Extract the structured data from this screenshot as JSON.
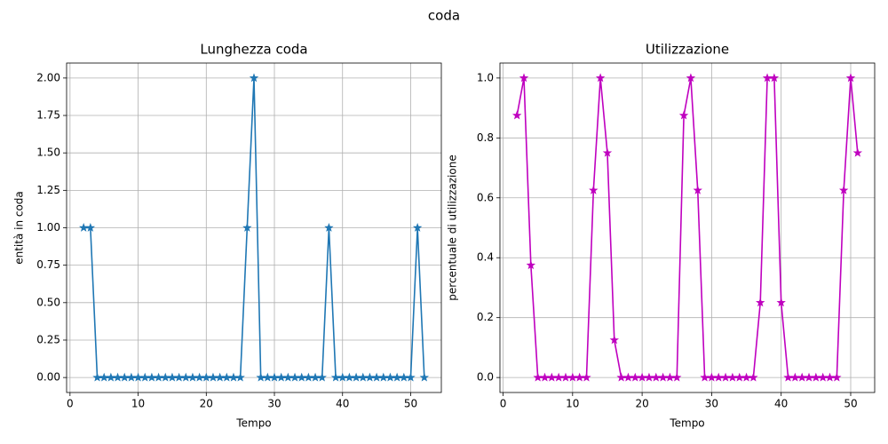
{
  "title": "coda",
  "chart_data": [
    {
      "type": "line",
      "title": "Lunghezza coda",
      "xlabel": "Tempo",
      "ylabel": "entità in coda",
      "color": "#1f77b4",
      "marker": "star",
      "grid": true,
      "x": [
        2,
        3,
        4,
        5,
        6,
        7,
        8,
        9,
        10,
        11,
        12,
        13,
        14,
        15,
        16,
        17,
        18,
        19,
        20,
        21,
        22,
        23,
        24,
        25,
        26,
        27,
        28,
        29,
        30,
        31,
        32,
        33,
        34,
        35,
        36,
        37,
        38,
        39,
        40,
        41,
        42,
        43,
        44,
        45,
        46,
        47,
        48,
        49,
        50,
        51,
        52
      ],
      "values": [
        1,
        1,
        0,
        0,
        0,
        0,
        0,
        0,
        0,
        0,
        0,
        0,
        0,
        0,
        0,
        0,
        0,
        0,
        0,
        0,
        0,
        0,
        0,
        0,
        1,
        2,
        0,
        0,
        0,
        0,
        0,
        0,
        0,
        0,
        0,
        0,
        1,
        0,
        0,
        0,
        0,
        0,
        0,
        0,
        0,
        0,
        0,
        0,
        0,
        1,
        0
      ],
      "xlim": [
        -0.5,
        54.5
      ],
      "ylim": [
        -0.1,
        2.1
      ],
      "xticks": [
        0,
        10,
        20,
        30,
        40,
        50
      ],
      "yticks": [
        {
          "value": 0,
          "label": "0.00"
        },
        {
          "value": 0.25,
          "label": "0.25"
        },
        {
          "value": 0.5,
          "label": "0.50"
        },
        {
          "value": 0.75,
          "label": "0.75"
        },
        {
          "value": 1,
          "label": "1.00"
        },
        {
          "value": 1.25,
          "label": "1.25"
        },
        {
          "value": 1.5,
          "label": "1.50"
        },
        {
          "value": 1.75,
          "label": "1.75"
        },
        {
          "value": 2,
          "label": "2.00"
        }
      ]
    },
    {
      "type": "line",
      "title": "Utilizzazione",
      "xlabel": "Tempo",
      "ylabel": "percentuale di utilizzazione",
      "color": "#bf00bf",
      "marker": "star",
      "grid": true,
      "x": [
        2,
        3,
        4,
        5,
        6,
        7,
        8,
        9,
        10,
        11,
        12,
        13,
        14,
        15,
        16,
        17,
        18,
        19,
        20,
        21,
        22,
        23,
        24,
        25,
        26,
        27,
        28,
        29,
        30,
        31,
        32,
        33,
        34,
        35,
        36,
        37,
        38,
        39,
        40,
        41,
        42,
        43,
        44,
        45,
        46,
        47,
        48,
        49,
        50,
        51
      ],
      "values": [
        0.875,
        1,
        0.375,
        0,
        0,
        0,
        0,
        0,
        0,
        0,
        0,
        0.625,
        1,
        0.75,
        0.125,
        0,
        0,
        0,
        0,
        0,
        0,
        0,
        0,
        0,
        0.875,
        1,
        0.625,
        0,
        0,
        0,
        0,
        0,
        0,
        0,
        0,
        0.25,
        1,
        1,
        0.25,
        0,
        0,
        0,
        0,
        0,
        0,
        0,
        0,
        0.625,
        1,
        0.75
      ],
      "xlim": [
        -0.45,
        53.45
      ],
      "ylim": [
        -0.05,
        1.05
      ],
      "xticks": [
        0,
        10,
        20,
        30,
        40,
        50
      ],
      "yticks": [
        {
          "value": 0,
          "label": "0.0"
        },
        {
          "value": 0.2,
          "label": "0.2"
        },
        {
          "value": 0.4,
          "label": "0.4"
        },
        {
          "value": 0.6,
          "label": "0.6"
        },
        {
          "value": 0.8,
          "label": "0.8"
        },
        {
          "value": 1,
          "label": "1.0"
        }
      ]
    }
  ]
}
